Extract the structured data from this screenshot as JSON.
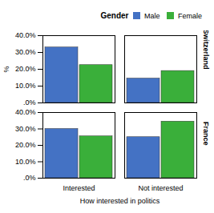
{
  "chart_data": [
    {
      "type": "bar",
      "title": "Switzerland",
      "ylabel": "%",
      "legend_title": "Gender",
      "legend": "top-right",
      "categories": [
        "Interested",
        "Not interested"
      ],
      "series": [
        {
          "name": "Male",
          "color": "#4472c4",
          "values": [
            33.0,
            14.5
          ]
        },
        {
          "name": "Female",
          "color": "#3aaf3a",
          "values": [
            22.5,
            19.0
          ]
        }
      ],
      "ylim": [
        0,
        40
      ],
      "yticks": [
        {
          "value": 0,
          "label": ".0%"
        },
        {
          "value": 10,
          "label": "10.0%"
        },
        {
          "value": 20,
          "label": "20.0%"
        },
        {
          "value": 30,
          "label": "30.0%"
        },
        {
          "value": 40,
          "label": "40.0%"
        }
      ],
      "grid": false,
      "tick_labels": "y"
    },
    {
      "type": "bar",
      "title": "France",
      "xlabel": "How interested in politics",
      "categories": [
        "Interested",
        "Not interested"
      ],
      "series": [
        {
          "name": "Male",
          "color": "#4472c4",
          "values": [
            30.0,
            25.0
          ]
        },
        {
          "name": "Female",
          "color": "#3aaf3a",
          "values": [
            25.5,
            34.5
          ]
        }
      ],
      "ylim": [
        0,
        40
      ],
      "yticks": [
        {
          "value": 0,
          "label": ".0%"
        },
        {
          "value": 10,
          "label": "10.0%"
        },
        {
          "value": 20,
          "label": "20.0%"
        },
        {
          "value": 30,
          "label": "30.0%"
        },
        {
          "value": 40,
          "label": "40.0%"
        }
      ],
      "grid": false
    }
  ]
}
